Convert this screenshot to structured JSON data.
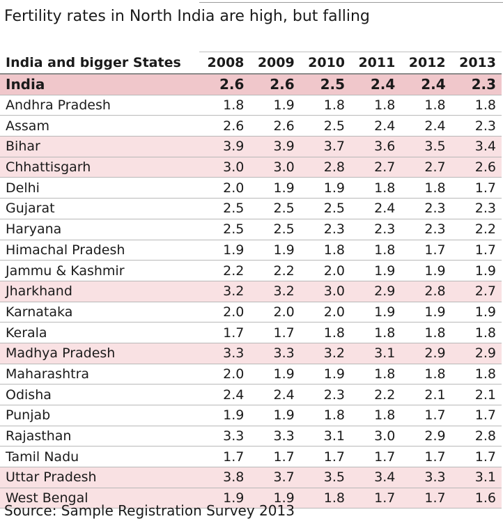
{
  "chart_data": {
    "type": "table",
    "title": "Fertility rates in North India are high, but falling",
    "state_header": "India and bigger States",
    "columns": [
      "2008",
      "2009",
      "2010",
      "2011",
      "2012",
      "2013"
    ],
    "rows": [
      {
        "name": "India",
        "values": [
          "2.6",
          "2.6",
          "2.5",
          "2.4",
          "2.4",
          "2.3"
        ],
        "style": "india"
      },
      {
        "name": "Andhra Pradesh",
        "values": [
          "1.8",
          "1.9",
          "1.8",
          "1.8",
          "1.8",
          "1.8"
        ],
        "style": "normal"
      },
      {
        "name": "Assam",
        "values": [
          "2.6",
          "2.6",
          "2.5",
          "2.4",
          "2.4",
          "2.3"
        ],
        "style": "normal"
      },
      {
        "name": "Bihar",
        "values": [
          "3.9",
          "3.9",
          "3.7",
          "3.6",
          "3.5",
          "3.4"
        ],
        "style": "high"
      },
      {
        "name": "Chhattisgarh",
        "values": [
          "3.0",
          "3.0",
          "2.8",
          "2.7",
          "2.7",
          "2.6"
        ],
        "style": "high"
      },
      {
        "name": "Delhi",
        "values": [
          "2.0",
          "1.9",
          "1.9",
          "1.8",
          "1.8",
          "1.7"
        ],
        "style": "normal"
      },
      {
        "name": "Gujarat",
        "values": [
          "2.5",
          "2.5",
          "2.5",
          "2.4",
          "2.3",
          "2.3"
        ],
        "style": "normal"
      },
      {
        "name": "Haryana",
        "values": [
          "2.5",
          "2.5",
          "2.3",
          "2.3",
          "2.3",
          "2.2"
        ],
        "style": "normal"
      },
      {
        "name": "Himachal Pradesh",
        "values": [
          "1.9",
          "1.9",
          "1.8",
          "1.8",
          "1.7",
          "1.7"
        ],
        "style": "normal"
      },
      {
        "name": "Jammu & Kashmir",
        "values": [
          "2.2",
          "2.2",
          "2.0",
          "1.9",
          "1.9",
          "1.9"
        ],
        "style": "normal"
      },
      {
        "name": "Jharkhand",
        "values": [
          "3.2",
          "3.2",
          "3.0",
          "2.9",
          "2.8",
          "2.7"
        ],
        "style": "high"
      },
      {
        "name": "Karnataka",
        "values": [
          "2.0",
          "2.0",
          "2.0",
          "1.9",
          "1.9",
          "1.9"
        ],
        "style": "normal"
      },
      {
        "name": "Kerala",
        "values": [
          "1.7",
          "1.7",
          "1.8",
          "1.8",
          "1.8",
          "1.8"
        ],
        "style": "normal"
      },
      {
        "name": "Madhya Pradesh",
        "values": [
          "3.3",
          "3.3",
          "3.2",
          "3.1",
          "2.9",
          "2.9"
        ],
        "style": "high"
      },
      {
        "name": "Maharashtra",
        "values": [
          "2.0",
          "1.9",
          "1.9",
          "1.8",
          "1.8",
          "1.8"
        ],
        "style": "normal"
      },
      {
        "name": "Odisha",
        "values": [
          "2.4",
          "2.4",
          "2.3",
          "2.2",
          "2.1",
          "2.1"
        ],
        "style": "normal"
      },
      {
        "name": "Punjab",
        "values": [
          "1.9",
          "1.9",
          "1.8",
          "1.8",
          "1.7",
          "1.7"
        ],
        "style": "normal"
      },
      {
        "name": "Rajasthan",
        "values": [
          "3.3",
          "3.3",
          "3.1",
          "3.0",
          "2.9",
          "2.8"
        ],
        "style": "normal"
      },
      {
        "name": "Tamil Nadu",
        "values": [
          "1.7",
          "1.7",
          "1.7",
          "1.7",
          "1.7",
          "1.7"
        ],
        "style": "normal"
      },
      {
        "name": "Uttar Pradesh",
        "values": [
          "3.8",
          "3.7",
          "3.5",
          "3.4",
          "3.3",
          "3.1"
        ],
        "style": "high"
      },
      {
        "name": "West Bengal",
        "values": [
          "1.9",
          "1.9",
          "1.8",
          "1.7",
          "1.7",
          "1.6"
        ],
        "style": "high"
      }
    ],
    "source": "Source: Sample Registration Survey 2013",
    "colors": {
      "india_row": "#f0c7cb",
      "high_row": "#f9e1e3"
    }
  }
}
